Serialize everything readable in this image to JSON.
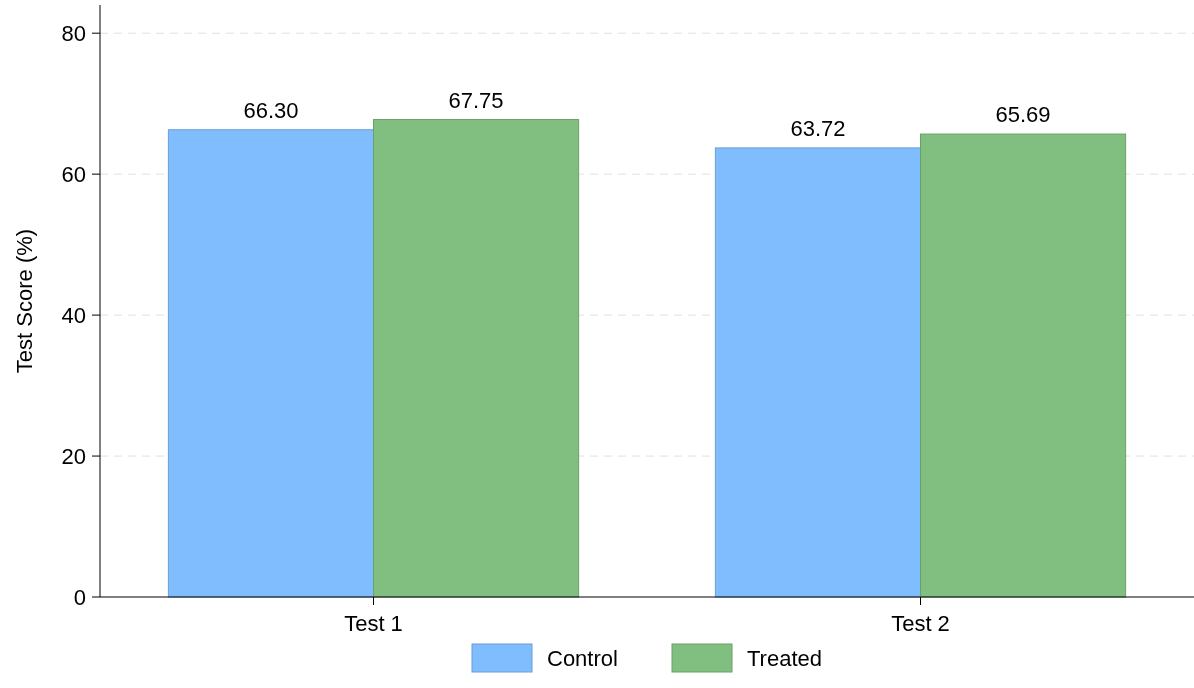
{
  "chart_data": {
    "type": "bar",
    "ylabel": "Test Score (%)",
    "categories": [
      "Test 1",
      "Test 2"
    ],
    "series": [
      {
        "name": "Control",
        "color": "#80bdff",
        "values": [
          66.3,
          63.72
        ],
        "value_labels": [
          "66.30",
          "63.72"
        ]
      },
      {
        "name": "Treated",
        "color": "#80bf80",
        "values": [
          67.75,
          65.69
        ],
        "value_labels": [
          "67.75",
          "65.69"
        ]
      }
    ],
    "ylim": [
      0,
      84
    ],
    "yticks": [
      0,
      20,
      40,
      60,
      80
    ],
    "grid": "y",
    "legend": "bottom"
  }
}
